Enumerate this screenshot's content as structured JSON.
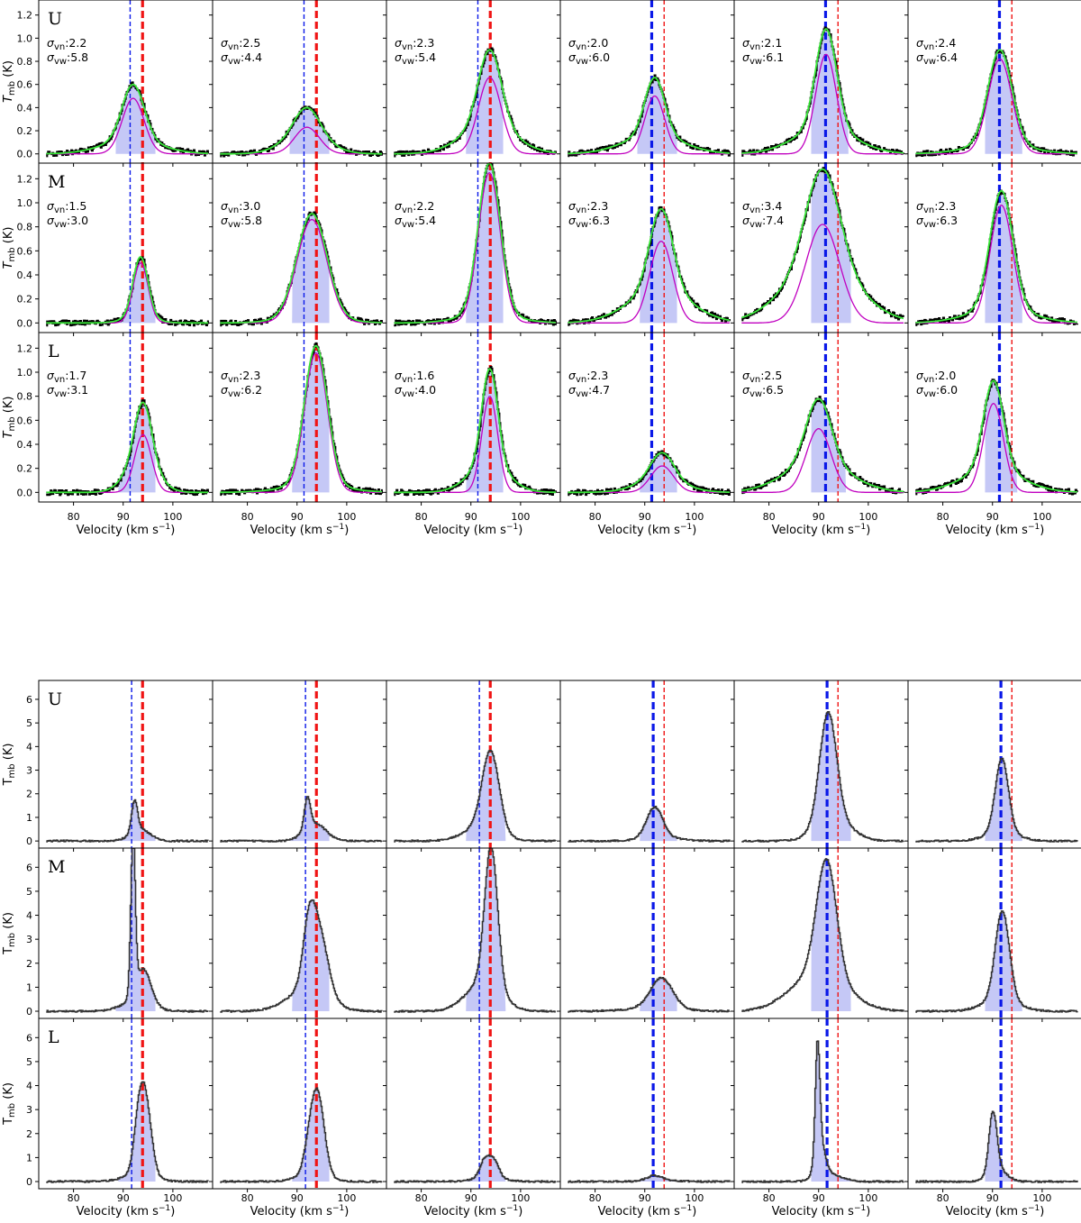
{
  "colors": {
    "spectrum": "#000000",
    "spectrum_lower": "#333333",
    "fit_total": "#39e639",
    "fit_narrow": "#c000c0",
    "fill": "#c5c8f6",
    "vline_blue": "#0a18e8",
    "vline_red": "#f01414"
  },
  "chart_data": [
    {
      "type": "line",
      "panel_grid": "3 rows x 6 columns",
      "description_of_lines": "black: observed spectrum; green: two-Gaussian fit; magenta: narrow component; blue fill: integration window; blue and red dashed: reference velocities",
      "xlabel": "Velocity (km s$^{-1}$)",
      "xlabel_text": "Velocity (km s",
      "xlabel_sup": "−1",
      "xlabel_close": ")",
      "ylabel_text": "T",
      "ylabel_sub": "mb",
      "ylabel_unit": " (K)",
      "xlim": [
        73,
        108
      ],
      "ylim": [
        -0.08,
        1.33
      ],
      "xticks": [
        80,
        90,
        100
      ],
      "yticks": [
        0.0,
        0.2,
        0.4,
        0.6,
        0.8,
        1.0,
        1.2
      ],
      "ytick_labels": [
        "0.0",
        "0.2",
        "0.4",
        "0.6",
        "0.8",
        "1.0",
        "1.2"
      ],
      "xtick_labels": [
        "80",
        "90",
        "100"
      ],
      "rows": [
        "U",
        "M",
        "L"
      ],
      "sigma_labels": {
        "vn": "σ",
        "vn_sub": "vn",
        "vw": "σ",
        "vw_sub": "vw"
      },
      "panels": [
        [
          {
            "peak": 0.6,
            "vpk": 92.0,
            "sn": 2.2,
            "sw": 5.8,
            "sn_txt": ":2.2",
            "sw_txt": ":5.8",
            "narrow_amp": 0.48,
            "vb": 91.4,
            "vr": 93.9,
            "thick": "red",
            "fill": [
              88.5,
              96.5
            ]
          },
          {
            "peak": 0.4,
            "vpk": 92.0,
            "sn": 2.5,
            "sw": 4.4,
            "sn_txt": ":2.5",
            "sw_txt": ":4.4",
            "narrow_amp": 0.23,
            "vb": 91.4,
            "vr": 93.9,
            "thick": "red",
            "fill": [
              88.5,
              96.5
            ]
          },
          {
            "peak": 0.9,
            "vpk": 93.8,
            "sn": 2.3,
            "sw": 5.4,
            "sn_txt": ":2.3",
            "sw_txt": ":5.4",
            "narrow_amp": 0.66,
            "vb": 91.4,
            "vr": 93.9,
            "thick": "red",
            "fill": [
              89.0,
              96.5
            ]
          },
          {
            "peak": 0.66,
            "vpk": 92.0,
            "sn": 2.0,
            "sw": 6.0,
            "sn_txt": ":2.0",
            "sw_txt": ":6.0",
            "narrow_amp": 0.5,
            "vb": 91.4,
            "vr": 93.9,
            "thick": "blue",
            "fill": [
              88.5,
              96.5
            ]
          },
          {
            "peak": 1.08,
            "vpk": 91.5,
            "sn": 2.1,
            "sw": 6.1,
            "sn_txt": ":2.1",
            "sw_txt": ":6.1",
            "narrow_amp": 0.86,
            "vb": 91.4,
            "vr": 93.9,
            "thick": "blue",
            "fill": [
              88.5,
              96.0
            ]
          },
          {
            "peak": 0.9,
            "vpk": 91.5,
            "sn": 2.4,
            "sw": 6.4,
            "sn_txt": ":2.4",
            "sw_txt": ":6.4",
            "narrow_amp": 0.82,
            "vb": 91.4,
            "vr": 93.9,
            "thick": "blue",
            "fill": [
              88.5,
              96.0
            ]
          }
        ],
        [
          {
            "peak": 0.55,
            "vpk": 93.5,
            "sn": 1.5,
            "sw": 3.0,
            "sn_txt": ":1.5",
            "sw_txt": ":3.0",
            "narrow_amp": 0.5,
            "vb": 91.4,
            "vr": 93.9,
            "thick": "red",
            "fill": [
              88.5,
              96.5
            ]
          },
          {
            "peak": 0.9,
            "vpk": 93.0,
            "sn": 3.0,
            "sw": 5.8,
            "sn_txt": ":3.0",
            "sw_txt": ":5.8",
            "narrow_amp": 0.86,
            "vb": 91.4,
            "vr": 93.9,
            "thick": "red",
            "fill": [
              89.0,
              96.5
            ]
          },
          {
            "peak": 1.33,
            "vpk": 93.7,
            "sn": 2.2,
            "sw": 5.4,
            "sn_txt": ":2.2",
            "sw_txt": ":5.4",
            "narrow_amp": 1.25,
            "vb": 91.4,
            "vr": 93.9,
            "thick": "red",
            "fill": [
              89.0,
              96.5
            ]
          },
          {
            "peak": 0.95,
            "vpk": 93.3,
            "sn": 2.3,
            "sw": 6.3,
            "sn_txt": ":2.3",
            "sw_txt": ":6.3",
            "narrow_amp": 0.68,
            "vb": 91.4,
            "vr": 93.9,
            "thick": "blue",
            "fill": [
              89.0,
              96.5
            ]
          },
          {
            "peak": 1.28,
            "vpk": 90.8,
            "sn": 3.4,
            "sw": 7.4,
            "sn_txt": ":3.4",
            "sw_txt": ":7.4",
            "narrow_amp": 0.82,
            "vb": 91.4,
            "vr": 93.9,
            "thick": "blue",
            "fill": [
              88.5,
              96.5
            ]
          },
          {
            "peak": 1.1,
            "vpk": 91.8,
            "sn": 2.3,
            "sw": 6.3,
            "sn_txt": ":2.3",
            "sw_txt": ":6.3",
            "narrow_amp": 0.98,
            "vb": 91.4,
            "vr": 93.9,
            "thick": "blue",
            "fill": [
              88.5,
              96.0
            ]
          }
        ],
        [
          {
            "peak": 0.75,
            "vpk": 94.0,
            "sn": 1.7,
            "sw": 3.1,
            "sn_txt": ":1.7",
            "sw_txt": ":3.1",
            "narrow_amp": 0.48,
            "vb": 91.4,
            "vr": 93.9,
            "thick": "red",
            "fill": [
              89.0,
              96.5
            ]
          },
          {
            "peak": 1.22,
            "vpk": 93.8,
            "sn": 2.3,
            "sw": 6.2,
            "sn_txt": ":2.3",
            "sw_txt": ":6.2",
            "narrow_amp": 1.16,
            "vb": 91.4,
            "vr": 93.9,
            "thick": "red",
            "fill": [
              89.0,
              96.5
            ]
          },
          {
            "peak": 1.03,
            "vpk": 93.8,
            "sn": 1.6,
            "sw": 4.0,
            "sn_txt": ":1.6",
            "sw_txt": ":4.0",
            "narrow_amp": 0.8,
            "vb": 91.4,
            "vr": 93.9,
            "thick": "red",
            "fill": [
              89.0,
              96.5
            ]
          },
          {
            "peak": 0.33,
            "vpk": 93.5,
            "sn": 2.3,
            "sw": 4.7,
            "sn_txt": ":2.3",
            "sw_txt": ":4.7",
            "narrow_amp": 0.22,
            "vb": 91.4,
            "vr": 93.9,
            "thick": "blue",
            "fill": [
              89.0,
              96.5
            ]
          },
          {
            "peak": 0.78,
            "vpk": 90.0,
            "sn": 2.5,
            "sw": 6.5,
            "sn_txt": ":2.5",
            "sw_txt": ":6.5",
            "narrow_amp": 0.53,
            "vb": 91.4,
            "vr": 93.9,
            "thick": "blue",
            "fill": [
              88.5,
              95.5
            ]
          },
          {
            "peak": 0.93,
            "vpk": 90.2,
            "sn": 2.0,
            "sw": 6.0,
            "sn_txt": ":2.0",
            "sw_txt": ":6.0",
            "narrow_amp": 0.74,
            "vb": 91.4,
            "vr": 93.9,
            "thick": "blue",
            "fill": [
              88.5,
              95.0
            ]
          }
        ]
      ]
    },
    {
      "type": "line",
      "panel_grid": "3 rows x 6 columns",
      "description_of_lines": "dark grey: observed spectrum; blue fill: integration window; blue and red dashed: reference velocities",
      "xlabel": "Velocity (km s$^{-1}$)",
      "xlabel_text": "Velocity (km s",
      "xlabel_sup": "−1",
      "xlabel_close": ")",
      "ylabel_text": "T",
      "ylabel_sub": "mb",
      "ylabel_unit": " (K)",
      "xlim": [
        73,
        108
      ],
      "ylim": [
        -0.3,
        6.8
      ],
      "xticks": [
        80,
        90,
        100
      ],
      "yticks": [
        0,
        1,
        2,
        3,
        4,
        5,
        6
      ],
      "ytick_labels": [
        "0",
        "1",
        "2",
        "3",
        "4",
        "5",
        "6"
      ],
      "xtick_labels": [
        "80",
        "90",
        "100"
      ],
      "rows": [
        "U",
        "M",
        "L"
      ],
      "panels": [
        [
          {
            "components": [
              [
                1.3,
                92.2,
                0.6
              ],
              [
                0.5,
                93.3,
                2.0
              ]
            ],
            "vb": 91.7,
            "vr": 93.9,
            "thick": "red",
            "fill": [
              88.5,
              96.5
            ]
          },
          {
            "components": [
              [
                1.3,
                92.0,
                0.6
              ],
              [
                0.75,
                93.5,
                2.2
              ]
            ],
            "vb": 91.7,
            "vr": 93.9,
            "thick": "red",
            "fill": [
              88.5,
              96.5
            ]
          },
          {
            "components": [
              [
                3.3,
                93.9,
                1.7
              ],
              [
                0.6,
                92.0,
                3.5
              ]
            ],
            "vb": 91.7,
            "vr": 93.9,
            "thick": "red",
            "fill": [
              89.0,
              97.0
            ]
          },
          {
            "components": [
              [
                1.3,
                91.9,
                1.6
              ],
              [
                0.15,
                93.0,
                4.0
              ]
            ],
            "vb": 91.7,
            "vr": 93.9,
            "thick": "blue",
            "fill": [
              89.0,
              96.5
            ]
          },
          {
            "components": [
              [
                4.6,
                91.8,
                1.7
              ],
              [
                0.9,
                93.0,
                3.5
              ]
            ],
            "vb": 91.7,
            "vr": 93.9,
            "thick": "blue",
            "fill": [
              88.5,
              96.5
            ]
          },
          {
            "components": [
              [
                3.1,
                91.8,
                1.3
              ],
              [
                0.4,
                91.8,
                3.2
              ]
            ],
            "vb": 91.7,
            "vr": 93.9,
            "thick": "blue",
            "fill": [
              88.5,
              96.0
            ]
          }
        ],
        [
          {
            "components": [
              [
                6.6,
                91.9,
                0.45
              ],
              [
                1.4,
                94.0,
                1.5
              ],
              [
                0.4,
                92.5,
                3.0
              ]
            ],
            "vb": 91.7,
            "vr": 93.9,
            "thick": "red",
            "fill": [
              88.5,
              96.5
            ]
          },
          {
            "components": [
              [
                2.1,
                92.3,
                1.2
              ],
              [
                2.6,
                94.3,
                1.8
              ],
              [
                0.9,
                92.0,
                4.0
              ]
            ],
            "vb": 91.7,
            "vr": 93.9,
            "thick": "red",
            "fill": [
              89.0,
              96.5
            ]
          },
          {
            "components": [
              [
                5.8,
                94.0,
                1.3
              ],
              [
                1.2,
                92.5,
                3.5
              ]
            ],
            "vb": 91.7,
            "vr": 93.9,
            "thick": "red",
            "fill": [
              89.0,
              97.0
            ]
          },
          {
            "components": [
              [
                1.25,
                93.3,
                2.2
              ],
              [
                0.15,
                92.0,
                5.0
              ]
            ],
            "vb": 91.7,
            "vr": 93.9,
            "thick": "blue",
            "fill": [
              89.0,
              96.5
            ]
          },
          {
            "components": [
              [
                4.8,
                91.5,
                2.0
              ],
              [
                1.6,
                90.0,
                5.5
              ]
            ],
            "vb": 91.7,
            "vr": 93.9,
            "thick": "blue",
            "fill": [
              88.5,
              96.5
            ]
          },
          {
            "components": [
              [
                3.7,
                91.9,
                1.4
              ],
              [
                0.5,
                91.5,
                3.5
              ]
            ],
            "vb": 91.7,
            "vr": 93.9,
            "thick": "blue",
            "fill": [
              88.5,
              96.0
            ]
          }
        ],
        [
          {
            "components": [
              [
                3.0,
                94.4,
                1.2
              ],
              [
                1.7,
                93.0,
                1.0
              ],
              [
                0.3,
                93.0,
                3.0
              ]
            ],
            "vb": 91.7,
            "vr": 93.9,
            "thick": "red",
            "fill": [
              89.0,
              96.5
            ]
          },
          {
            "components": [
              [
                3.0,
                94.2,
                1.3
              ],
              [
                1.2,
                92.6,
                1.2
              ],
              [
                0.3,
                93.0,
                3.0
              ]
            ],
            "vb": 91.7,
            "vr": 93.9,
            "thick": "red",
            "fill": [
              89.0,
              96.5
            ]
          },
          {
            "components": [
              [
                0.75,
                92.7,
                1.0
              ],
              [
                0.7,
                94.6,
                1.0
              ],
              [
                0.15,
                93.5,
                3.0
              ]
            ],
            "vb": 91.7,
            "vr": 93.9,
            "thick": "red",
            "fill": [
              89.0,
              97.0
            ]
          },
          {
            "components": [
              [
                0.2,
                91.8,
                1.5
              ],
              [
                0.05,
                93.5,
                3.0
              ]
            ],
            "vb": 91.7,
            "vr": 93.9,
            "thick": "blue",
            "fill": [
              89.0,
              96.5
            ]
          },
          {
            "components": [
              [
                4.5,
                89.7,
                0.45
              ],
              [
                1.4,
                90.2,
                1.0
              ],
              [
                0.3,
                92.0,
                2.5
              ]
            ],
            "vb": 91.7,
            "vr": 93.9,
            "thick": "blue",
            "fill": [
              88.5,
              96.5
            ]
          },
          {
            "components": [
              [
                2.5,
                90.0,
                0.8
              ],
              [
                0.5,
                91.0,
                1.8
              ]
            ],
            "vb": 91.7,
            "vr": 93.9,
            "thick": "blue",
            "fill": [
              88.5,
              96.0
            ]
          }
        ]
      ]
    }
  ]
}
